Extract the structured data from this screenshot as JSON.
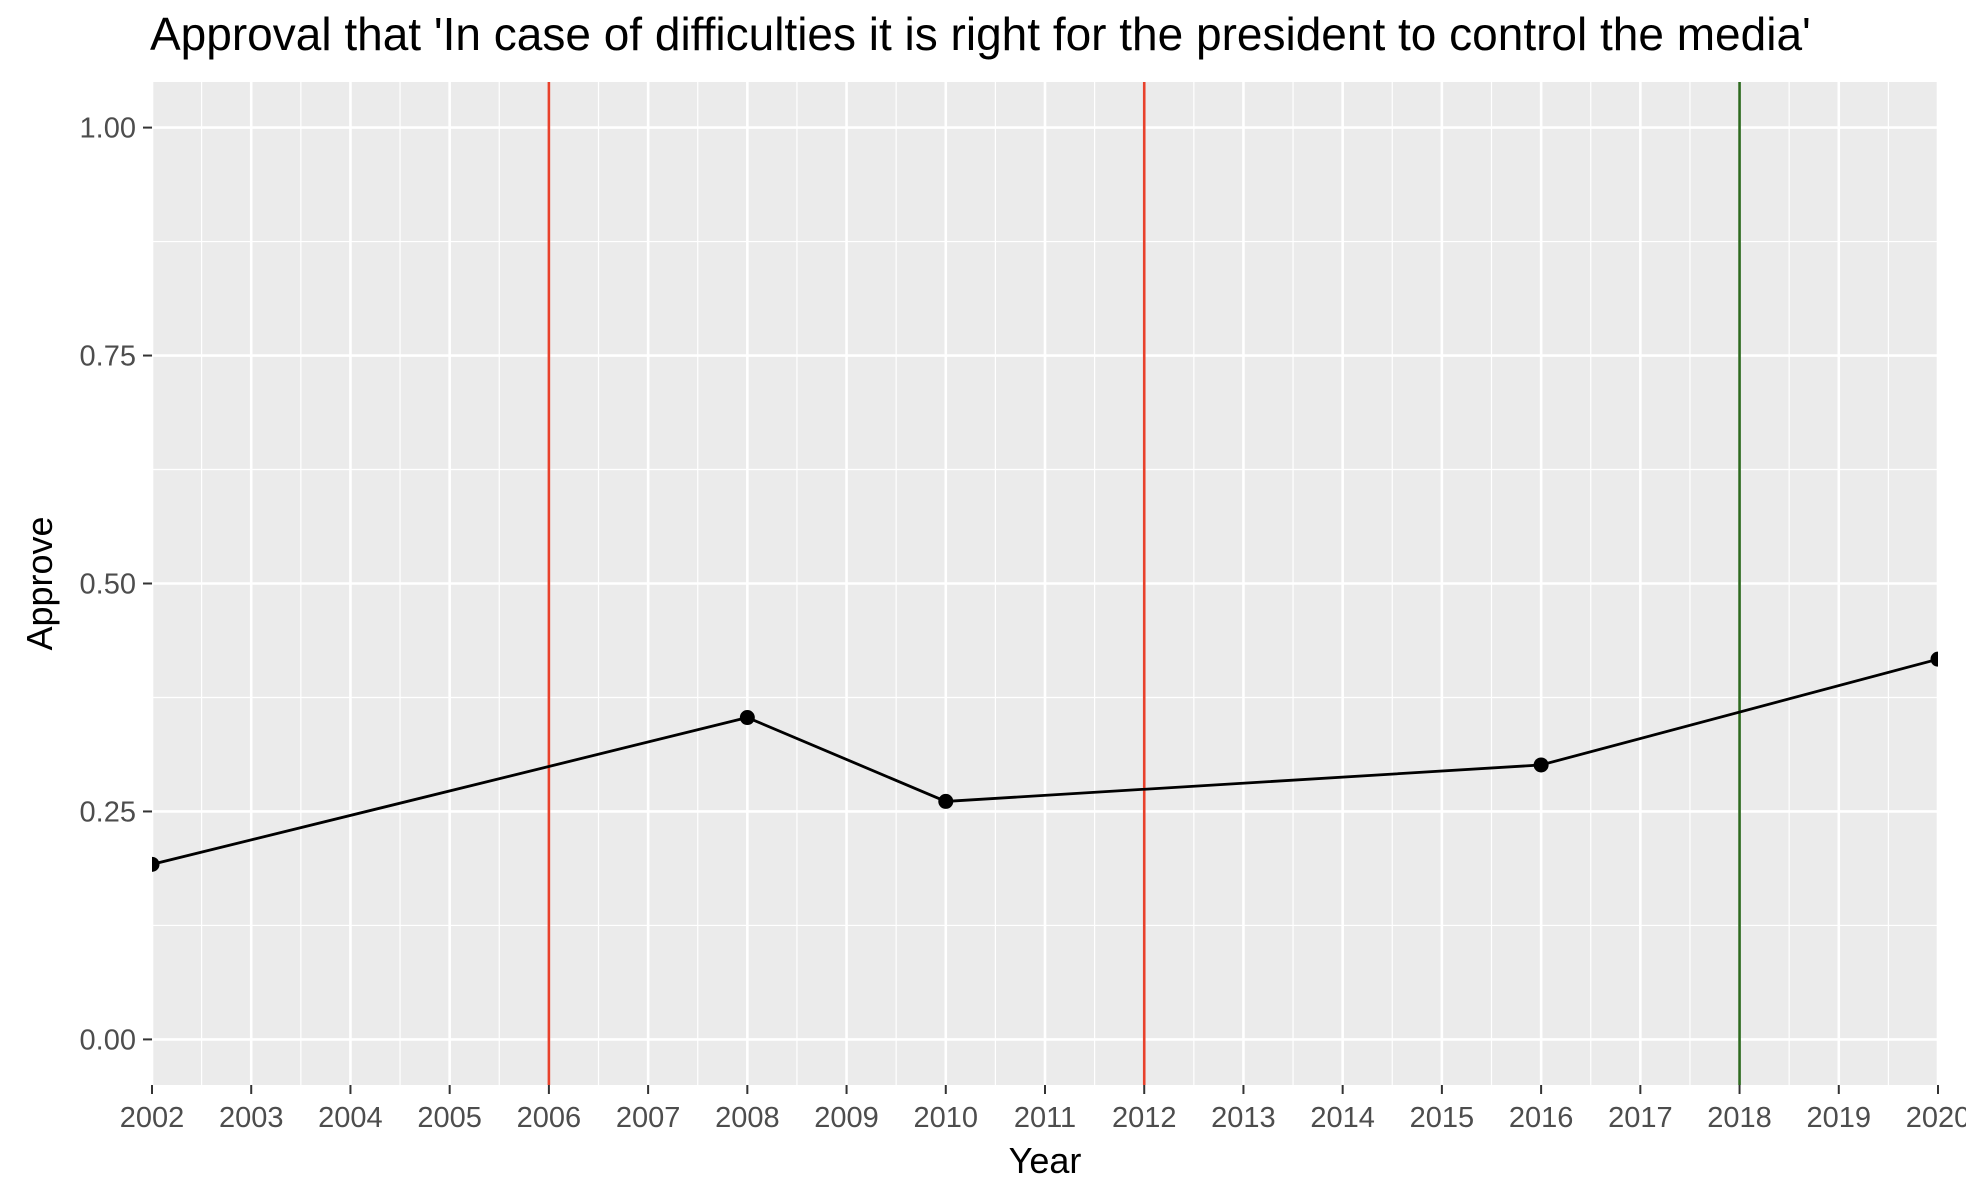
{
  "chart_data": {
    "type": "line",
    "title": "Approval that 'In case of difficulties it is right for the president to control the media'",
    "xlabel": "Year",
    "ylabel": "Approve",
    "xlim": [
      2002,
      2020
    ],
    "ylim": [
      -0.05,
      1.05
    ],
    "x_ticks": [
      2002,
      2003,
      2004,
      2005,
      2006,
      2007,
      2008,
      2009,
      2010,
      2011,
      2012,
      2013,
      2014,
      2015,
      2016,
      2017,
      2018,
      2019,
      2020
    ],
    "x_tick_labels": [
      "2002",
      "2003",
      "2004",
      "2005",
      "2006",
      "2007",
      "2008",
      "2009",
      "2010",
      "2011",
      "2012",
      "2013",
      "2014",
      "2015",
      "2016",
      "2017",
      "2018",
      "2019",
      "2020"
    ],
    "y_ticks": [
      0,
      0.25,
      0.5,
      0.75,
      1.0
    ],
    "y_tick_labels": [
      "0.00",
      "0.25",
      "0.50",
      "0.75",
      "1.00"
    ],
    "grid": true,
    "panel_background": "#ebebeb",
    "series": [
      {
        "x": [
          2002,
          2008,
          2010,
          2016,
          2020
        ],
        "y": [
          0.192,
          0.353,
          0.261,
          0.301,
          0.417
        ],
        "color": "#000000",
        "markers": true
      }
    ],
    "vlines": [
      {
        "x": 2006,
        "color": "#e8412b"
      },
      {
        "x": 2012,
        "color": "#e8412b"
      },
      {
        "x": 2018,
        "color": "#2d6a1f"
      }
    ]
  }
}
